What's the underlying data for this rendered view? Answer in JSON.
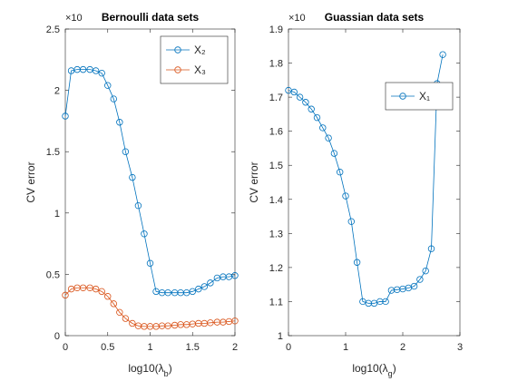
{
  "chart_data": [
    {
      "type": "line",
      "title": "Bernoulli data sets",
      "exponent_label": "×10",
      "xlabel": [
        "log10(λ",
        "b",
        ")"
      ],
      "ylabel": "CV error",
      "x": [
        0,
        0.07,
        0.14,
        0.21,
        0.29,
        0.36,
        0.43,
        0.5,
        0.57,
        0.64,
        0.71,
        0.79,
        0.86,
        0.93,
        1.0,
        1.07,
        1.14,
        1.21,
        1.29,
        1.36,
        1.43,
        1.5,
        1.57,
        1.64,
        1.71,
        1.79,
        1.86,
        1.93,
        2.0
      ],
      "series": [
        {
          "name": "X₂",
          "color": "#0072bd",
          "values": [
            1.79,
            2.16,
            2.17,
            2.17,
            2.17,
            2.16,
            2.14,
            2.04,
            1.93,
            1.74,
            1.5,
            1.29,
            1.06,
            0.83,
            0.59,
            0.36,
            0.35,
            0.35,
            0.35,
            0.35,
            0.35,
            0.36,
            0.38,
            0.4,
            0.43,
            0.47,
            0.48,
            0.48,
            0.49
          ]
        },
        {
          "name": "X₃",
          "color": "#d95319",
          "values": [
            0.33,
            0.38,
            0.39,
            0.39,
            0.39,
            0.38,
            0.36,
            0.32,
            0.26,
            0.19,
            0.14,
            0.1,
            0.08,
            0.075,
            0.075,
            0.075,
            0.08,
            0.08,
            0.085,
            0.09,
            0.09,
            0.095,
            0.1,
            0.1,
            0.105,
            0.11,
            0.11,
            0.115,
            0.12
          ]
        }
      ],
      "xlim": [
        0,
        2
      ],
      "xticks": [
        0,
        0.5,
        1,
        1.5,
        2
      ],
      "ylim": [
        0,
        2.5
      ],
      "yticks": [
        0,
        0.5,
        1,
        1.5,
        2,
        2.5
      ],
      "legend": "northeast"
    },
    {
      "type": "line",
      "title": "Guassian data sets",
      "exponent_label": "×10",
      "xlabel": [
        "log10(λ",
        "g",
        ")"
      ],
      "ylabel": "CV error",
      "x": [
        0,
        0.1,
        0.2,
        0.3,
        0.4,
        0.5,
        0.6,
        0.7,
        0.8,
        0.9,
        1.0,
        1.1,
        1.2,
        1.3,
        1.4,
        1.5,
        1.6,
        1.7,
        1.8,
        1.9,
        2.0,
        2.1,
        2.2,
        2.3,
        2.4,
        2.5,
        2.6,
        2.7
      ],
      "series": [
        {
          "name": "X₁",
          "color": "#0072bd",
          "values": [
            1.72,
            1.715,
            1.7,
            1.685,
            1.665,
            1.64,
            1.61,
            1.58,
            1.535,
            1.48,
            1.41,
            1.335,
            1.215,
            1.1,
            1.095,
            1.095,
            1.1,
            1.1,
            1.133,
            1.135,
            1.137,
            1.14,
            1.145,
            1.165,
            1.19,
            1.255,
            1.74,
            1.825
          ]
        }
      ],
      "xlim": [
        0,
        3
      ],
      "xticks": [
        0,
        1,
        2,
        3
      ],
      "ylim": [
        1,
        1.9
      ],
      "yticks": [
        1,
        1.1,
        1.2,
        1.3,
        1.4,
        1.5,
        1.6,
        1.7,
        1.8,
        1.9
      ],
      "legend": "east"
    }
  ]
}
